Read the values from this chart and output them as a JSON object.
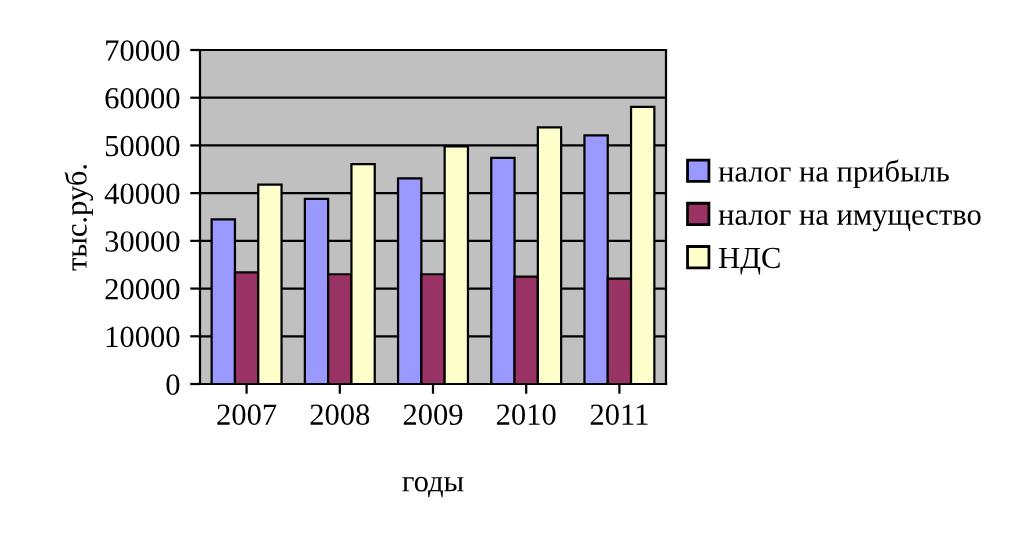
{
  "chart_data": {
    "type": "bar",
    "xlabel": "годы",
    "ylabel": "тыс.руб.",
    "categories": [
      "2007",
      "2008",
      "2009",
      "2010",
      "2011"
    ],
    "series": [
      {
        "name": "налог на прибыль",
        "color": "#9999ff",
        "values": [
          34500,
          38800,
          43100,
          47400,
          52100
        ]
      },
      {
        "name": "налог на имущество",
        "color": "#993366",
        "values": [
          23400,
          23000,
          23000,
          22500,
          22100
        ]
      },
      {
        "name": "НДС",
        "color": "#ffffcc",
        "values": [
          41800,
          46100,
          49800,
          53800,
          58100
        ]
      }
    ],
    "ylim": [
      0,
      70000
    ],
    "yticks": [
      0,
      10000,
      20000,
      30000,
      40000,
      50000,
      60000,
      70000
    ],
    "grid": "y",
    "legend": "right"
  }
}
